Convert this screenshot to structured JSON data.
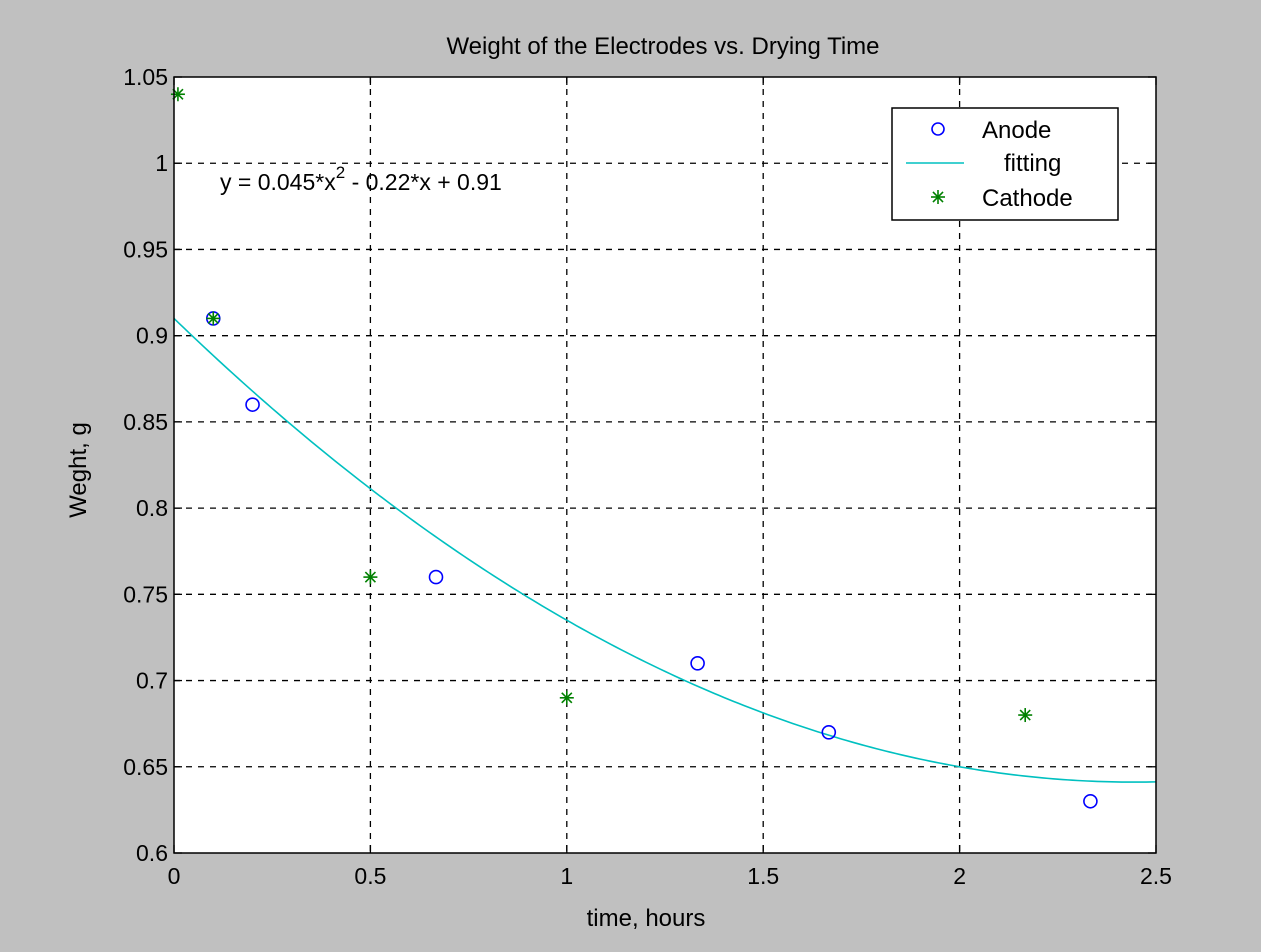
{
  "chart_data": {
    "type": "scatter",
    "title": "Weight of the Electrodes vs.  Drying Time",
    "xlabel": "time, hours",
    "ylabel": "Weght, g",
    "xlim": [
      0,
      2.5
    ],
    "ylim": [
      0.6,
      1.05
    ],
    "xticks": [
      "0",
      "0.5",
      "1",
      "1.5",
      "2",
      "2.5"
    ],
    "yticks": [
      "0.6",
      "0.65",
      "0.7",
      "0.75",
      "0.8",
      "0.85",
      "0.9",
      "0.95",
      "1",
      "1.05"
    ],
    "grid": true,
    "legend_position": "top-right",
    "annotation": {
      "base": "y = 0.045*x",
      "superscript": "2",
      "rest": " - 0.22*x + 0.91"
    },
    "series": [
      {
        "name": "Anode",
        "marker": "circle",
        "color": "#0000ff",
        "x": [
          0.1,
          0.2,
          0.667,
          1.333,
          1.667,
          2.333
        ],
        "y": [
          0.91,
          0.86,
          0.76,
          0.71,
          0.67,
          0.63
        ]
      },
      {
        "name": "fitting",
        "kind": "curve",
        "color": "#00c0c0",
        "coefficients": [
          0.045,
          -0.22,
          0.91
        ],
        "x_range": [
          0,
          2.5
        ]
      },
      {
        "name": "Cathode",
        "marker": "asterisk",
        "color": "#008000",
        "x": [
          0.01,
          0.1,
          0.5,
          1.0,
          2.167
        ],
        "y": [
          1.04,
          0.91,
          0.76,
          0.69,
          0.68
        ]
      }
    ]
  }
}
